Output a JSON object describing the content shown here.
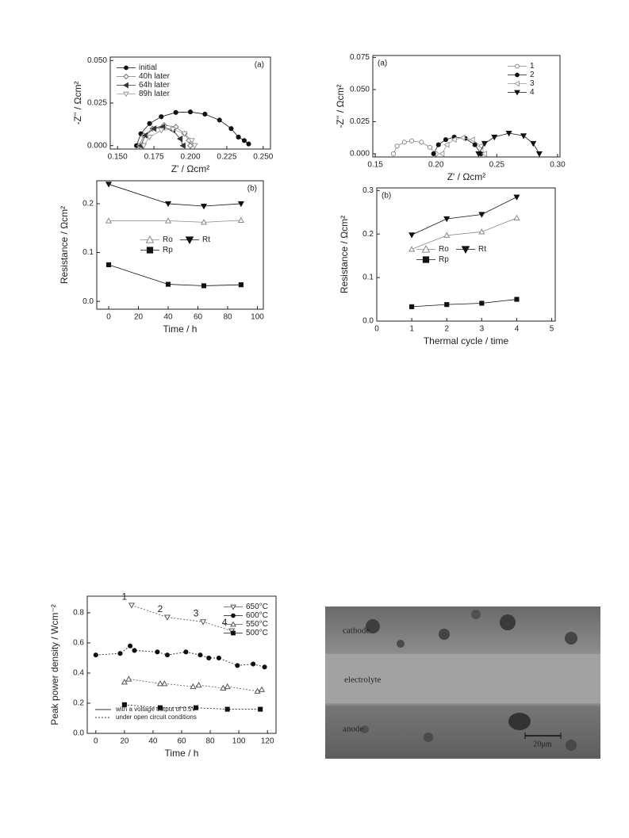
{
  "chart_data": [
    {
      "type": "line",
      "panel_label": "(a)",
      "panel_label_corner": "upper right",
      "xlabel": "Z' / Ωcm²",
      "ylabel": "-Z'' / Ωcm²",
      "xlim": [
        0.145,
        0.255
      ],
      "ylim": [
        -0.002,
        0.052
      ],
      "xticks": [
        {
          "value": 0.15,
          "label": "0.150"
        },
        {
          "value": 0.175,
          "label": "0.175"
        },
        {
          "value": 0.2,
          "label": "0.200"
        },
        {
          "value": 0.225,
          "label": "0.225"
        },
        {
          "value": 0.25,
          "label": "0.250"
        }
      ],
      "yticks": [
        {
          "value": 0,
          "label": "0.000"
        },
        {
          "value": 0.025,
          "label": "0.025"
        },
        {
          "value": 0.05,
          "label": "0.050"
        }
      ],
      "legend": "upper left",
      "legend_columns": 1,
      "series": [
        {
          "name": "initial",
          "color": "#111111",
          "marker": "circle-filled",
          "x": [
            0.163,
            0.166,
            0.172,
            0.18,
            0.19,
            0.2,
            0.21,
            0.22,
            0.228,
            0.233,
            0.237,
            0.24
          ],
          "values": [
            0,
            0.007,
            0.013,
            0.017,
            0.0195,
            0.0198,
            0.0185,
            0.015,
            0.01,
            0.005,
            0.003,
            0.001
          ]
        },
        {
          "name": "40h later",
          "color": "#777777",
          "marker": "diamond-open",
          "x": [
            0.165,
            0.168,
            0.174,
            0.182,
            0.19,
            0.196,
            0.199,
            0.2
          ],
          "values": [
            0,
            0.006,
            0.01,
            0.012,
            0.011,
            0.007,
            0.003,
            0
          ]
        },
        {
          "name": "64h later",
          "color": "#333333",
          "marker": "left-filled",
          "x": [
            0.166,
            0.169,
            0.175,
            0.181,
            0.188,
            0.193,
            0.195
          ],
          "values": [
            0,
            0.006,
            0.01,
            0.011,
            0.009,
            0.004,
            0
          ]
        },
        {
          "name": "89h later",
          "color": "#999999",
          "marker": "down-open",
          "x": [
            0.168,
            0.172,
            0.18,
            0.188,
            0.196,
            0.201,
            0.203
          ],
          "values": [
            0,
            0.005,
            0.009,
            0.0095,
            0.007,
            0.003,
            0
          ]
        }
      ]
    },
    {
      "type": "line",
      "panel_label": "(b)",
      "panel_label_corner": "upper right",
      "xlabel": "Time / h",
      "ylabel": "Resistance / Ωcm²",
      "xlim": [
        -8,
        104
      ],
      "ylim": [
        -0.016,
        0.247
      ],
      "xticks": [
        0,
        20,
        40,
        60,
        80,
        100
      ],
      "yticks": [
        {
          "value": 0,
          "label": "0.0"
        },
        {
          "value": 0.1,
          "label": "0.1"
        },
        {
          "value": 0.2,
          "label": "0.2"
        }
      ],
      "legend": "center",
      "legend_columns": 2,
      "series": [
        {
          "name": "Ro",
          "color": "#888888",
          "marker": "up-open",
          "x": [
            0,
            40,
            64,
            89
          ],
          "values": [
            0.165,
            0.165,
            0.162,
            0.166
          ]
        },
        {
          "name": "Rt",
          "color": "#111111",
          "marker": "down-filled",
          "x": [
            0,
            40,
            64,
            89
          ],
          "values": [
            0.24,
            0.2,
            0.195,
            0.2
          ]
        },
        {
          "name": "Rp",
          "color": "#111111",
          "marker": "square-filled",
          "x": [
            0,
            40,
            64,
            89
          ],
          "values": [
            0.075,
            0.035,
            0.032,
            0.034
          ]
        }
      ]
    },
    {
      "type": "line",
      "panel_label": "(a)",
      "panel_label_corner": "upper left",
      "xlabel": "Z' / Ωcm²",
      "ylabel": "-Z'' / Ωcm²",
      "xlim": [
        0.148,
        0.302
      ],
      "ylim": [
        -0.0025,
        0.0765
      ],
      "xticks": [
        {
          "value": 0.15,
          "label": "0.15"
        },
        {
          "value": 0.2,
          "label": "0.20"
        },
        {
          "value": 0.25,
          "label": "0.25"
        },
        {
          "value": 0.3,
          "label": "0.30"
        }
      ],
      "yticks": [
        {
          "value": 0,
          "label": "0.000"
        },
        {
          "value": 0.025,
          "label": "0.025"
        },
        {
          "value": 0.05,
          "label": "0.050"
        },
        {
          "value": 0.075,
          "label": "0.075"
        }
      ],
      "legend": "upper right",
      "legend_columns": 1,
      "series": [
        {
          "name": "1",
          "color": "#888888",
          "marker": "circle-open",
          "x": [
            0.165,
            0.168,
            0.174,
            0.18,
            0.188,
            0.195,
            0.2
          ],
          "values": [
            0,
            0.006,
            0.009,
            0.01,
            0.009,
            0.005,
            0
          ]
        },
        {
          "name": "2",
          "color": "#111111",
          "marker": "circle-filled",
          "x": [
            0.198,
            0.202,
            0.208,
            0.215,
            0.224,
            0.232,
            0.237
          ],
          "values": [
            0,
            0.007,
            0.011,
            0.013,
            0.012,
            0.007,
            0
          ]
        },
        {
          "name": "3",
          "color": "#999999",
          "marker": "left-open",
          "x": [
            0.205,
            0.209,
            0.215,
            0.222,
            0.23,
            0.237,
            0.24
          ],
          "values": [
            0,
            0.007,
            0.011,
            0.0125,
            0.011,
            0.006,
            0
          ]
        },
        {
          "name": "4",
          "color": "#111111",
          "marker": "down-filled",
          "x": [
            0.235,
            0.24,
            0.248,
            0.26,
            0.272,
            0.28,
            0.285
          ],
          "values": [
            0,
            0.008,
            0.013,
            0.016,
            0.014,
            0.008,
            0
          ]
        }
      ]
    },
    {
      "type": "line",
      "panel_label": "(b)",
      "panel_label_corner": "upper left",
      "xlabel": "Thermal cycle / time",
      "ylabel": "Resistance / Ωcm²",
      "xlim": [
        0,
        5.1
      ],
      "ylim": [
        0,
        0.306
      ],
      "xticks": [
        0,
        1,
        2,
        3,
        4,
        5
      ],
      "yticks": [
        {
          "value": 0,
          "label": "0.0"
        },
        {
          "value": 0.1,
          "label": "0.1"
        },
        {
          "value": 0.2,
          "label": "0.2"
        },
        {
          "value": 0.3,
          "label": "0.3"
        }
      ],
      "legend": "center left",
      "legend_columns": 2,
      "series": [
        {
          "name": "Ro",
          "color": "#888888",
          "marker": "up-open",
          "x": [
            1,
            2,
            3,
            4
          ],
          "values": [
            0.165,
            0.197,
            0.205,
            0.237
          ]
        },
        {
          "name": "Rt",
          "color": "#111111",
          "marker": "down-filled",
          "x": [
            1,
            2,
            3,
            4
          ],
          "values": [
            0.198,
            0.235,
            0.245,
            0.285
          ]
        },
        {
          "name": "Rp",
          "color": "#111111",
          "marker": "square-filled",
          "x": [
            1,
            2,
            3,
            4
          ],
          "values": [
            0.033,
            0.038,
            0.041,
            0.05
          ]
        }
      ]
    },
    {
      "type": "line",
      "xlabel": "Time / h",
      "ylabel": "Peak power density / Wcm⁻²",
      "xlim": [
        -6,
        126
      ],
      "ylim": [
        0,
        0.91
      ],
      "xticks": [
        0,
        20,
        40,
        60,
        80,
        100,
        120
      ],
      "yticks": [
        {
          "value": 0,
          "label": "0.0"
        },
        {
          "value": 0.2,
          "label": "0.2"
        },
        {
          "value": 0.4,
          "label": "0.4"
        },
        {
          "value": 0.6,
          "label": "0.6"
        },
        {
          "value": 0.8,
          "label": "0.8"
        }
      ],
      "legend": "upper right",
      "legend_columns": 1,
      "line_style": "dotted",
      "line_legend": [
        {
          "text": "with a voltage output of 0.5V",
          "style": "solid"
        },
        {
          "text": "under open circuit conditions",
          "style": "dotted"
        }
      ],
      "series": [
        {
          "name": "650°C",
          "color": "#555555",
          "marker": "down-open",
          "x": [
            25,
            50,
            75,
            95
          ],
          "values": [
            0.85,
            0.77,
            0.74,
            0.68
          ],
          "point_labels": [
            "1",
            "2",
            "3",
            "4"
          ]
        },
        {
          "name": "600°C",
          "color": "#111111",
          "marker": "circle-filled",
          "x": [
            0,
            17,
            24,
            27,
            43,
            50,
            63,
            73,
            79,
            86,
            99,
            110,
            118
          ],
          "values": [
            0.52,
            0.53,
            0.58,
            0.55,
            0.54,
            0.52,
            0.54,
            0.52,
            0.5,
            0.5,
            0.45,
            0.46,
            0.44
          ]
        },
        {
          "name": "550°C",
          "color": "#555555",
          "marker": "up-open",
          "x": [
            20,
            23,
            45,
            48,
            68,
            72,
            89,
            92,
            113,
            116
          ],
          "values": [
            0.34,
            0.36,
            0.33,
            0.33,
            0.31,
            0.32,
            0.3,
            0.31,
            0.28,
            0.29
          ]
        },
        {
          "name": "500°C",
          "color": "#111111",
          "marker": "square-filled",
          "x": [
            20,
            45,
            70,
            92,
            115
          ],
          "values": [
            0.19,
            0.17,
            0.17,
            0.16,
            0.16
          ]
        }
      ]
    }
  ],
  "image": {
    "labels": [
      "cathode",
      "electrolyte",
      "anode"
    ],
    "scale_bar": "20μm"
  }
}
